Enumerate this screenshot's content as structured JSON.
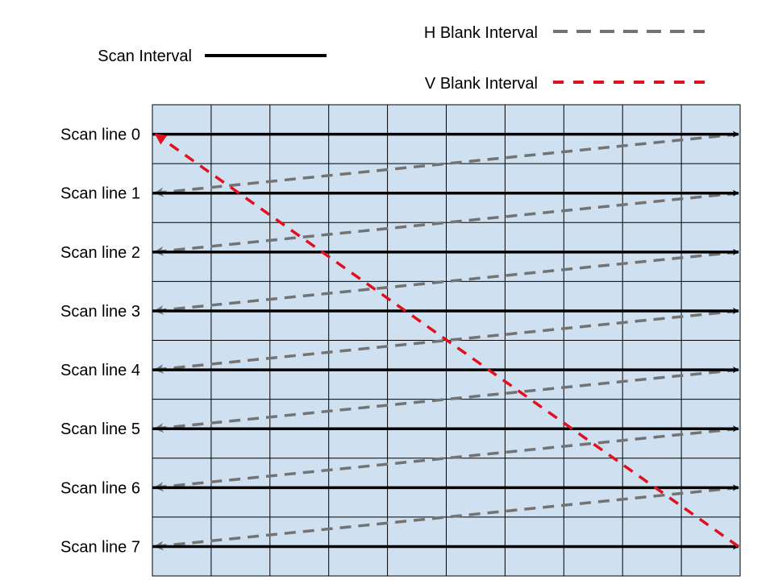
{
  "legend": {
    "scan": "Scan Interval",
    "hblank": "H Blank Interval",
    "vblank": "V Blank Interval"
  },
  "scan_lines": [
    "Scan line 0",
    "Scan line 1",
    "Scan line 2",
    "Scan line 3",
    "Scan line 4",
    "Scan line 5",
    "Scan line 6",
    "Scan line 7"
  ],
  "grid": {
    "columns": 10,
    "rows": 8
  },
  "colors": {
    "grid_fill": "#cfe0f1",
    "grid_line": "#000000",
    "scan": "#000000",
    "hblank": "#737373",
    "vblank": "#e0101e"
  }
}
